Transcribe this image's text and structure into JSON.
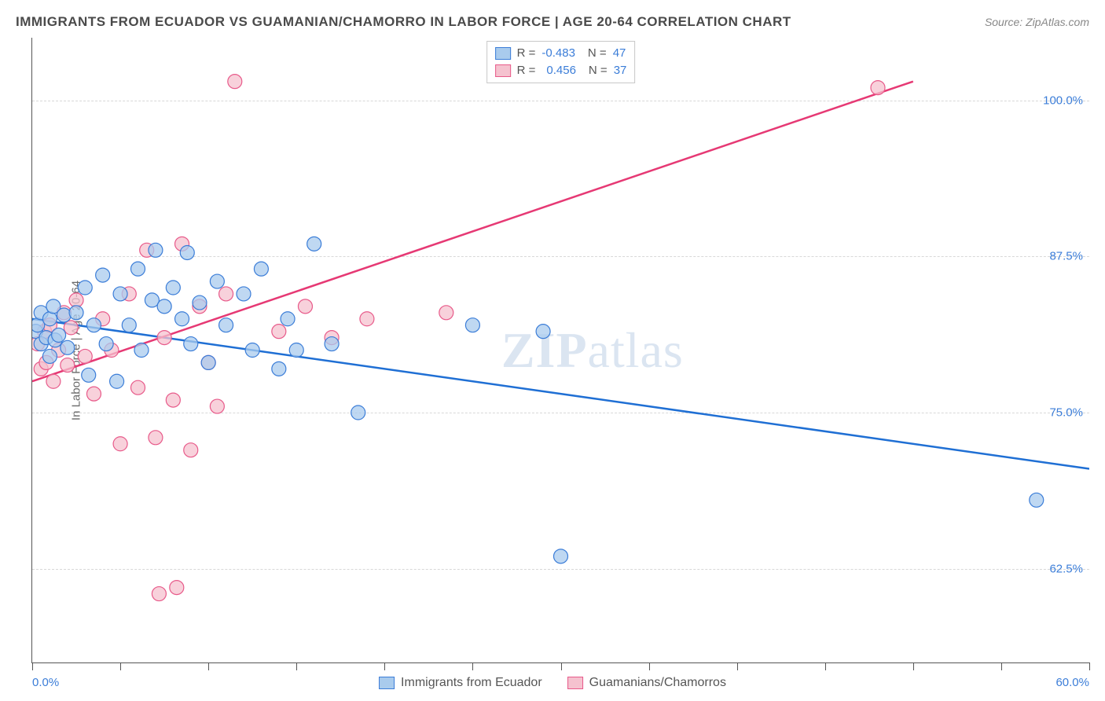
{
  "title": "IMMIGRANTS FROM ECUADOR VS GUAMANIAN/CHAMORRO IN LABOR FORCE | AGE 20-64 CORRELATION CHART",
  "source": "Source: ZipAtlas.com",
  "y_axis_label": "In Labor Force | Age 20-64",
  "watermark": "ZIPatlas",
  "chart": {
    "type": "scatter",
    "xlim": [
      0,
      60
    ],
    "ylim": [
      55,
      105
    ],
    "x_tick_positions": [
      0,
      5,
      10,
      15,
      20,
      25,
      30,
      35,
      40,
      45,
      50,
      55,
      60
    ],
    "x_tick_labels": {
      "0": "0.0%",
      "60": "60.0%"
    },
    "y_ticks": [
      62.5,
      75.0,
      87.5,
      100.0
    ],
    "y_tick_labels": [
      "62.5%",
      "75.0%",
      "87.5%",
      "100.0%"
    ],
    "grid_color": "#d8d8d8",
    "background_color": "#ffffff",
    "axis_color": "#555555",
    "marker_radius": 9,
    "marker_stroke_width": 1.2,
    "line_width": 2.5
  },
  "series": [
    {
      "name": "Immigrants from Ecuador",
      "fill_color": "#a9cbed",
      "stroke_color": "#3b7dd8",
      "line_color": "#1f6fd4",
      "R": "-0.483",
      "N": "47",
      "trend_line": {
        "x1": 0,
        "y1": 82.5,
        "x2": 60,
        "y2": 70.5
      },
      "points": [
        [
          0.2,
          81.5
        ],
        [
          0.3,
          82.0
        ],
        [
          0.5,
          80.5
        ],
        [
          0.5,
          83.0
        ],
        [
          0.8,
          81.0
        ],
        [
          1.0,
          82.5
        ],
        [
          1.0,
          79.5
        ],
        [
          1.2,
          83.5
        ],
        [
          1.3,
          80.8
        ],
        [
          1.5,
          81.2
        ],
        [
          1.8,
          82.8
        ],
        [
          2.0,
          80.2
        ],
        [
          2.5,
          83.0
        ],
        [
          3.0,
          85.0
        ],
        [
          3.2,
          78.0
        ],
        [
          3.5,
          82.0
        ],
        [
          4.0,
          86.0
        ],
        [
          4.2,
          80.5
        ],
        [
          4.8,
          77.5
        ],
        [
          5.0,
          84.5
        ],
        [
          5.5,
          82.0
        ],
        [
          6.0,
          86.5
        ],
        [
          6.2,
          80.0
        ],
        [
          6.8,
          84.0
        ],
        [
          7.0,
          88.0
        ],
        [
          7.5,
          83.5
        ],
        [
          8.0,
          85.0
        ],
        [
          8.5,
          82.5
        ],
        [
          8.8,
          87.8
        ],
        [
          9.0,
          80.5
        ],
        [
          9.5,
          83.8
        ],
        [
          10.0,
          79.0
        ],
        [
          10.5,
          85.5
        ],
        [
          11.0,
          82.0
        ],
        [
          12.0,
          84.5
        ],
        [
          12.5,
          80.0
        ],
        [
          13.0,
          86.5
        ],
        [
          14.0,
          78.5
        ],
        [
          14.5,
          82.5
        ],
        [
          15.0,
          80.0
        ],
        [
          16.0,
          88.5
        ],
        [
          17.0,
          80.5
        ],
        [
          18.5,
          75.0
        ],
        [
          25.0,
          82.0
        ],
        [
          29.0,
          81.5
        ],
        [
          30.0,
          63.5
        ],
        [
          57.0,
          68.0
        ]
      ]
    },
    {
      "name": "Guamanians/Chamorros",
      "fill_color": "#f5c2cf",
      "stroke_color": "#e85a8a",
      "line_color": "#e63974",
      "R": "0.456",
      "N": "37",
      "trend_line": {
        "x1": 0,
        "y1": 77.5,
        "x2": 50,
        "y2": 101.5
      },
      "points": [
        [
          0.3,
          80.5
        ],
        [
          0.5,
          78.5
        ],
        [
          0.7,
          81.5
        ],
        [
          0.8,
          79.0
        ],
        [
          1.0,
          82.0
        ],
        [
          1.2,
          77.5
        ],
        [
          1.5,
          80.0
        ],
        [
          1.8,
          83.0
        ],
        [
          2.0,
          78.8
        ],
        [
          2.2,
          81.8
        ],
        [
          2.5,
          84.0
        ],
        [
          3.0,
          79.5
        ],
        [
          3.5,
          76.5
        ],
        [
          4.0,
          82.5
        ],
        [
          4.5,
          80.0
        ],
        [
          5.0,
          72.5
        ],
        [
          5.5,
          84.5
        ],
        [
          6.0,
          77.0
        ],
        [
          6.5,
          88.0
        ],
        [
          7.0,
          73.0
        ],
        [
          7.2,
          60.5
        ],
        [
          7.5,
          81.0
        ],
        [
          8.0,
          76.0
        ],
        [
          8.2,
          61.0
        ],
        [
          8.5,
          88.5
        ],
        [
          9.0,
          72.0
        ],
        [
          9.5,
          83.5
        ],
        [
          10.0,
          79.0
        ],
        [
          10.5,
          75.5
        ],
        [
          11.0,
          84.5
        ],
        [
          11.5,
          101.5
        ],
        [
          14.0,
          81.5
        ],
        [
          15.5,
          83.5
        ],
        [
          17.0,
          81.0
        ],
        [
          19.0,
          82.5
        ],
        [
          23.5,
          83.0
        ],
        [
          48.0,
          101.0
        ]
      ]
    }
  ],
  "legend_top": {
    "R_label": "R =",
    "N_label": "N ="
  },
  "legend_bottom": {
    "series1": "Immigrants from Ecuador",
    "series2": "Guamanians/Chamorros"
  }
}
